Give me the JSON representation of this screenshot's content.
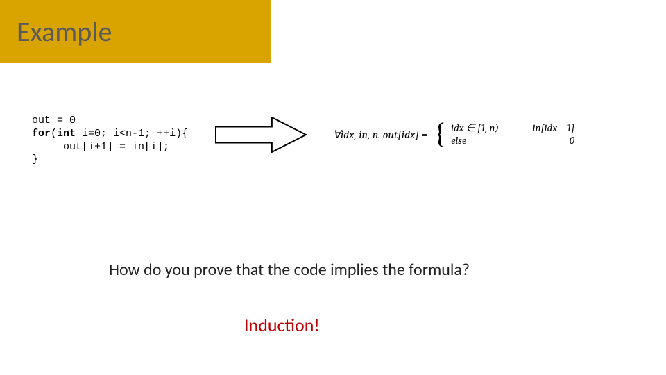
{
  "colors": {
    "title_bg": "#d9a300",
    "title_text": "#5a5a5a",
    "code_text": "#000000",
    "arrow_stroke": "#000000",
    "arrow_fill": "#ffffff",
    "question_text": "#222222",
    "answer_text": "#c00000",
    "formula_text": "#000000",
    "background": "#ffffff"
  },
  "title": "Example",
  "code": {
    "line1": "out = 0",
    "for_kw": "for",
    "int_kw": "int",
    "for_rest": " i=0; i<n-1; ++i){",
    "line3": "     out[i+1] = in[i];",
    "line4": "}"
  },
  "arrow": {
    "width": 132,
    "height": 52,
    "stroke_width": 2
  },
  "formula": {
    "prefix": "∀idx, in, n.  out[idx] =",
    "cases": [
      {
        "cond": "idx ∈ [1, n)",
        "val": "in[idx − 1]"
      },
      {
        "cond": "else",
        "val": "0"
      }
    ]
  },
  "question": "How do you prove that the code implies the formula?",
  "answer": "Induction!"
}
